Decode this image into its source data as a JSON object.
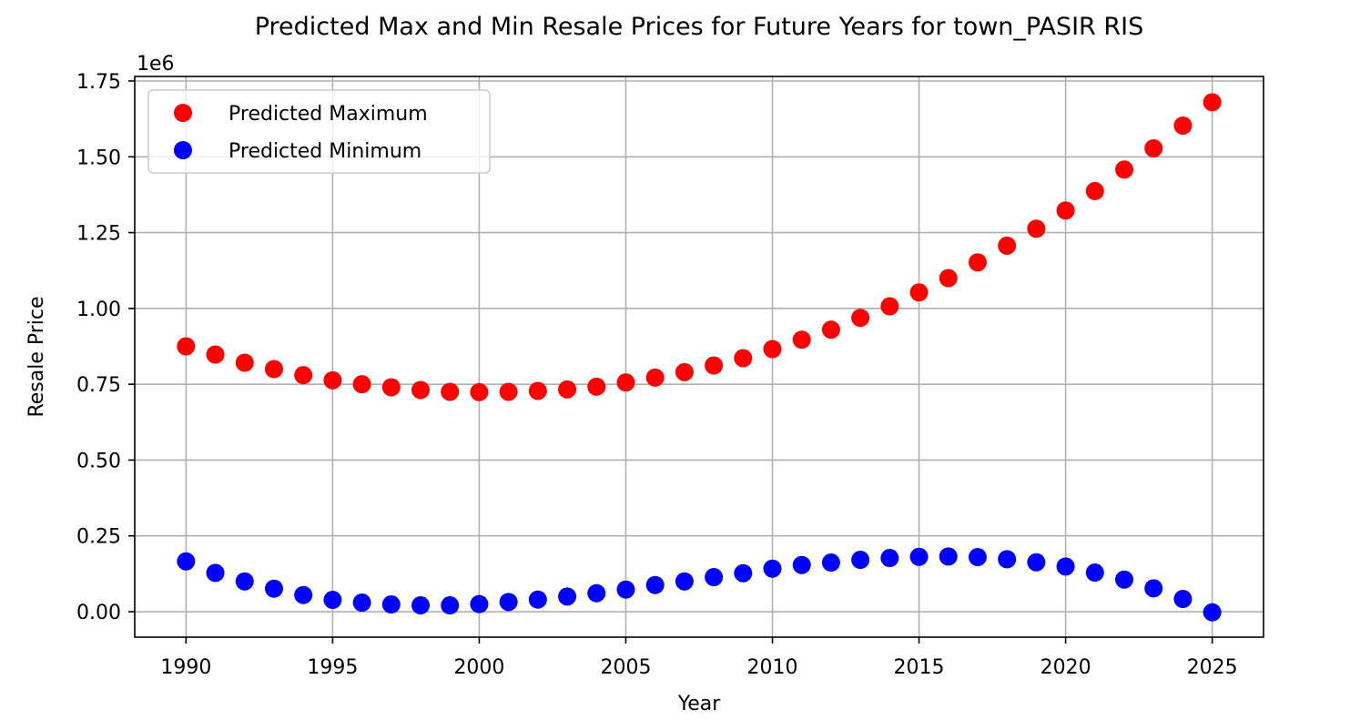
{
  "chart_data": {
    "type": "scatter",
    "title": "Predicted Max and Min Resale Prices for Future Years for town_PASIR RIS",
    "xlabel": "Year",
    "ylabel": "Resale Price",
    "y_offset_label": "1e6",
    "xlim": [
      1988.25,
      2026.75
    ],
    "ylim": [
      -0.084,
      1.765
    ],
    "x_ticks": [
      1990,
      1995,
      2000,
      2005,
      2010,
      2015,
      2020,
      2025
    ],
    "x_tick_labels": [
      "1990",
      "1995",
      "2000",
      "2005",
      "2010",
      "2015",
      "2020",
      "2025"
    ],
    "y_ticks": [
      0,
      0.25,
      0.5,
      0.75,
      1.0,
      1.25,
      1.5,
      1.75
    ],
    "y_tick_labels": [
      "0.00",
      "0.25",
      "0.50",
      "0.75",
      "1.00",
      "1.25",
      "1.50",
      "1.75"
    ],
    "grid": true,
    "legend_position": "upper-left",
    "x": [
      1990,
      1991,
      1992,
      1993,
      1994,
      1995,
      1996,
      1997,
      1998,
      1999,
      2000,
      2001,
      2002,
      2003,
      2004,
      2005,
      2006,
      2007,
      2008,
      2009,
      2010,
      2011,
      2012,
      2013,
      2014,
      2015,
      2016,
      2017,
      2018,
      2019,
      2020,
      2021,
      2022,
      2023,
      2024,
      2025
    ],
    "series": [
      {
        "name": "Predicted Maximum",
        "color": "#ff0000",
        "values": [
          0.875,
          0.848,
          0.821,
          0.8,
          0.78,
          0.763,
          0.75,
          0.74,
          0.731,
          0.725,
          0.724,
          0.725,
          0.728,
          0.733,
          0.742,
          0.756,
          0.772,
          0.79,
          0.812,
          0.836,
          0.866,
          0.897,
          0.93,
          0.969,
          1.007,
          1.053,
          1.1,
          1.152,
          1.207,
          1.263,
          1.323,
          1.387,
          1.458,
          1.528,
          1.603,
          1.68
        ]
      },
      {
        "name": "Predicted Minimum",
        "color": "#0000ff",
        "values": [
          0.166,
          0.128,
          0.1,
          0.076,
          0.055,
          0.039,
          0.03,
          0.024,
          0.021,
          0.021,
          0.025,
          0.032,
          0.04,
          0.05,
          0.061,
          0.073,
          0.088,
          0.1,
          0.114,
          0.127,
          0.142,
          0.154,
          0.162,
          0.171,
          0.177,
          0.181,
          0.182,
          0.18,
          0.173,
          0.163,
          0.149,
          0.129,
          0.106,
          0.077,
          0.042,
          -0.002
        ]
      }
    ]
  }
}
